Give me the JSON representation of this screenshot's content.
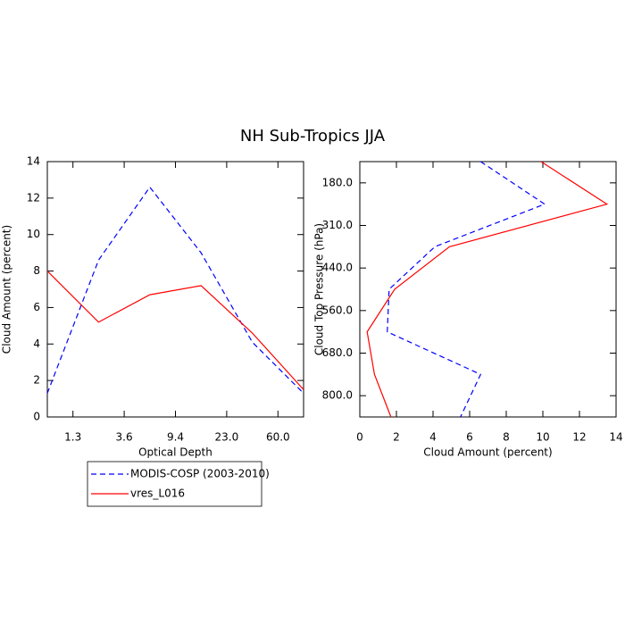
{
  "title": "NH Sub-Tropics JJA",
  "chart_data": [
    {
      "type": "line",
      "orientation": "vertical",
      "xlabel": "Optical Depth",
      "ylabel": "Cloud Amount (percent)",
      "x": [
        0,
        1,
        2,
        3,
        4,
        5
      ],
      "xlim": [
        0,
        5
      ],
      "xticks": [
        {
          "value": 0.5,
          "label": "1.3"
        },
        {
          "value": 1.5,
          "label": "3.6"
        },
        {
          "value": 2.5,
          "label": "9.4"
        },
        {
          "value": 3.5,
          "label": "23.0"
        },
        {
          "value": 4.5,
          "label": "60.0"
        }
      ],
      "ylim": [
        0,
        14
      ],
      "yticks": [
        0,
        2,
        4,
        6,
        8,
        10,
        12,
        14
      ],
      "legend": "bottom-left",
      "series": [
        {
          "name": "MODIS-COSP (2003-2010)",
          "color": "#0000ff",
          "line_style": "dashed",
          "values": [
            1.3,
            8.6,
            12.6,
            9.0,
            4.1,
            1.3
          ]
        },
        {
          "name": "vres_L016",
          "color": "#ff0000",
          "line_style": "solid",
          "values": [
            8.0,
            5.2,
            6.7,
            7.2,
            4.6,
            1.5
          ]
        }
      ]
    },
    {
      "type": "line",
      "orientation": "horizontal",
      "xlabel": "Cloud Amount (percent)",
      "ylabel": "Cloud Top Pressure (hPa)",
      "y": [
        0,
        1,
        2,
        3,
        4,
        5,
        6
      ],
      "ylim": [
        6,
        0
      ],
      "yticks": [
        {
          "value": 0.5,
          "label": "180.0"
        },
        {
          "value": 1.5,
          "label": "310.0"
        },
        {
          "value": 2.5,
          "label": "440.0"
        },
        {
          "value": 3.5,
          "label": "560.0"
        },
        {
          "value": 4.5,
          "label": "680.0"
        },
        {
          "value": 5.5,
          "label": "800.0"
        }
      ],
      "xlim": [
        0,
        14
      ],
      "xticks": [
        0,
        2,
        4,
        6,
        8,
        10,
        12,
        14
      ],
      "series": [
        {
          "color": "#0000ff",
          "line_style": "dashed",
          "values": [
            6.6,
            10.1,
            4.1,
            1.6,
            1.5,
            6.6,
            5.5
          ]
        },
        {
          "color": "#ff0000",
          "line_style": "solid",
          "values": [
            9.9,
            13.5,
            4.9,
            1.9,
            0.4,
            0.8,
            1.7
          ]
        }
      ]
    }
  ]
}
